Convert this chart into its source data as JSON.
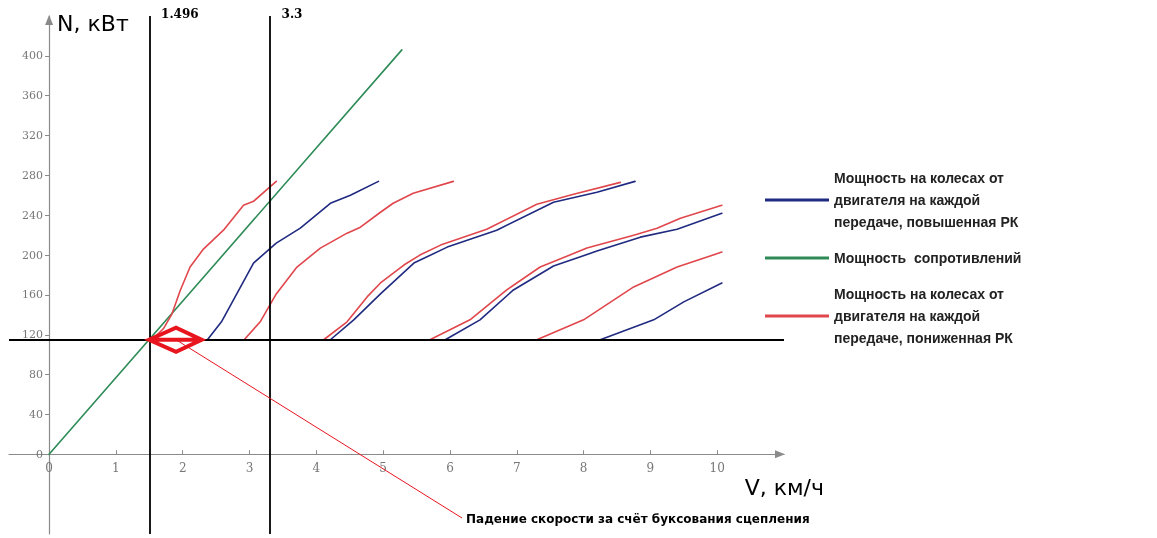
{
  "chart_data": {
    "type": "line",
    "xlabel": "V, км/ч",
    "ylabel": "N, кВт",
    "xlim": [
      -0.6,
      11
    ],
    "xticks": [
      0,
      1,
      2,
      3,
      4,
      5,
      6,
      7,
      8,
      9,
      10
    ],
    "ylim": [
      -80,
      440
    ],
    "yticks": [
      0,
      40,
      80,
      120,
      160,
      200,
      240,
      280,
      320,
      360,
      400
    ],
    "marker": "none",
    "line_style": "solid",
    "legend": "right",
    "series": [
      {
        "name": "Мощность на колесах от двигателя на каждой передаче, повышенная РК",
        "color": "#1f2a80",
        "x": [
          2.37,
          2.58,
          2.76,
          3.06,
          3.4,
          3.76,
          4.21,
          4.51,
          4.93,
          null,
          4.21,
          4.56,
          4.96,
          5.46,
          5.96,
          6.7,
          7.55,
          8.2,
          8.77,
          null,
          5.93,
          6.45,
          6.95,
          7.55,
          8.2,
          8.85,
          9.4,
          10.07,
          null,
          8.25,
          9.05,
          9.5,
          10.07
        ],
        "values": [
          115,
          133,
          155,
          192,
          212,
          227,
          252,
          260,
          274,
          null,
          115,
          135,
          161,
          192,
          208,
          225,
          253,
          263,
          274,
          null,
          115,
          135,
          165,
          189,
          204,
          218,
          226,
          242,
          null,
          115,
          135,
          153,
          172
        ]
      },
      {
        "name": "Мощность  сопротивлений",
        "color": "#2e8b57",
        "x": [
          0,
          5.28
        ],
        "values": [
          0,
          406
        ]
      },
      {
        "name": "Мощность на колесах от двигателя на каждой передаче, пониженная РК",
        "color": "#e0474c",
        "x": [
          1.54,
          1.71,
          1.84,
          1.96,
          2.11,
          2.31,
          2.61,
          2.91,
          3.06,
          3.4,
          null,
          2.92,
          3.16,
          3.4,
          3.71,
          4.06,
          4.46,
          4.66,
          4.96,
          5.15,
          5.45,
          6.05,
          null,
          4.11,
          4.46,
          4.76,
          4.96,
          5.31,
          5.55,
          5.86,
          6.55,
          7.3,
          7.85,
          8.55,
          null,
          5.7,
          6.3,
          6.85,
          7.35,
          8.05,
          8.75,
          9.1,
          9.45,
          10.07,
          null,
          7.3,
          8.0,
          8.75,
          9.4,
          10.07
        ],
        "values": [
          115,
          126,
          141,
          164,
          188,
          206,
          225,
          250,
          254,
          274,
          null,
          115,
          133,
          161,
          188,
          207,
          222,
          228,
          243,
          252,
          262,
          274,
          null,
          115,
          133,
          158,
          172,
          190,
          200,
          210,
          226,
          251,
          261,
          273,
          null,
          115,
          135,
          165,
          188,
          207,
          220,
          227,
          237,
          250,
          null,
          115,
          135,
          168,
          188,
          203
        ]
      }
    ],
    "ref_lines": [
      {
        "axis": "x",
        "value": 1.496,
        "label": "1.496",
        "color": "#000000"
      },
      {
        "axis": "x",
        "value": 3.3,
        "label": "3.3",
        "color": "#000000"
      },
      {
        "axis": "y",
        "value": 115,
        "color": "#000000"
      }
    ],
    "annotations": [
      {
        "text": "Падение скорости за счёт буксования сцепления",
        "x": 1.9,
        "y": 115
      }
    ]
  }
}
